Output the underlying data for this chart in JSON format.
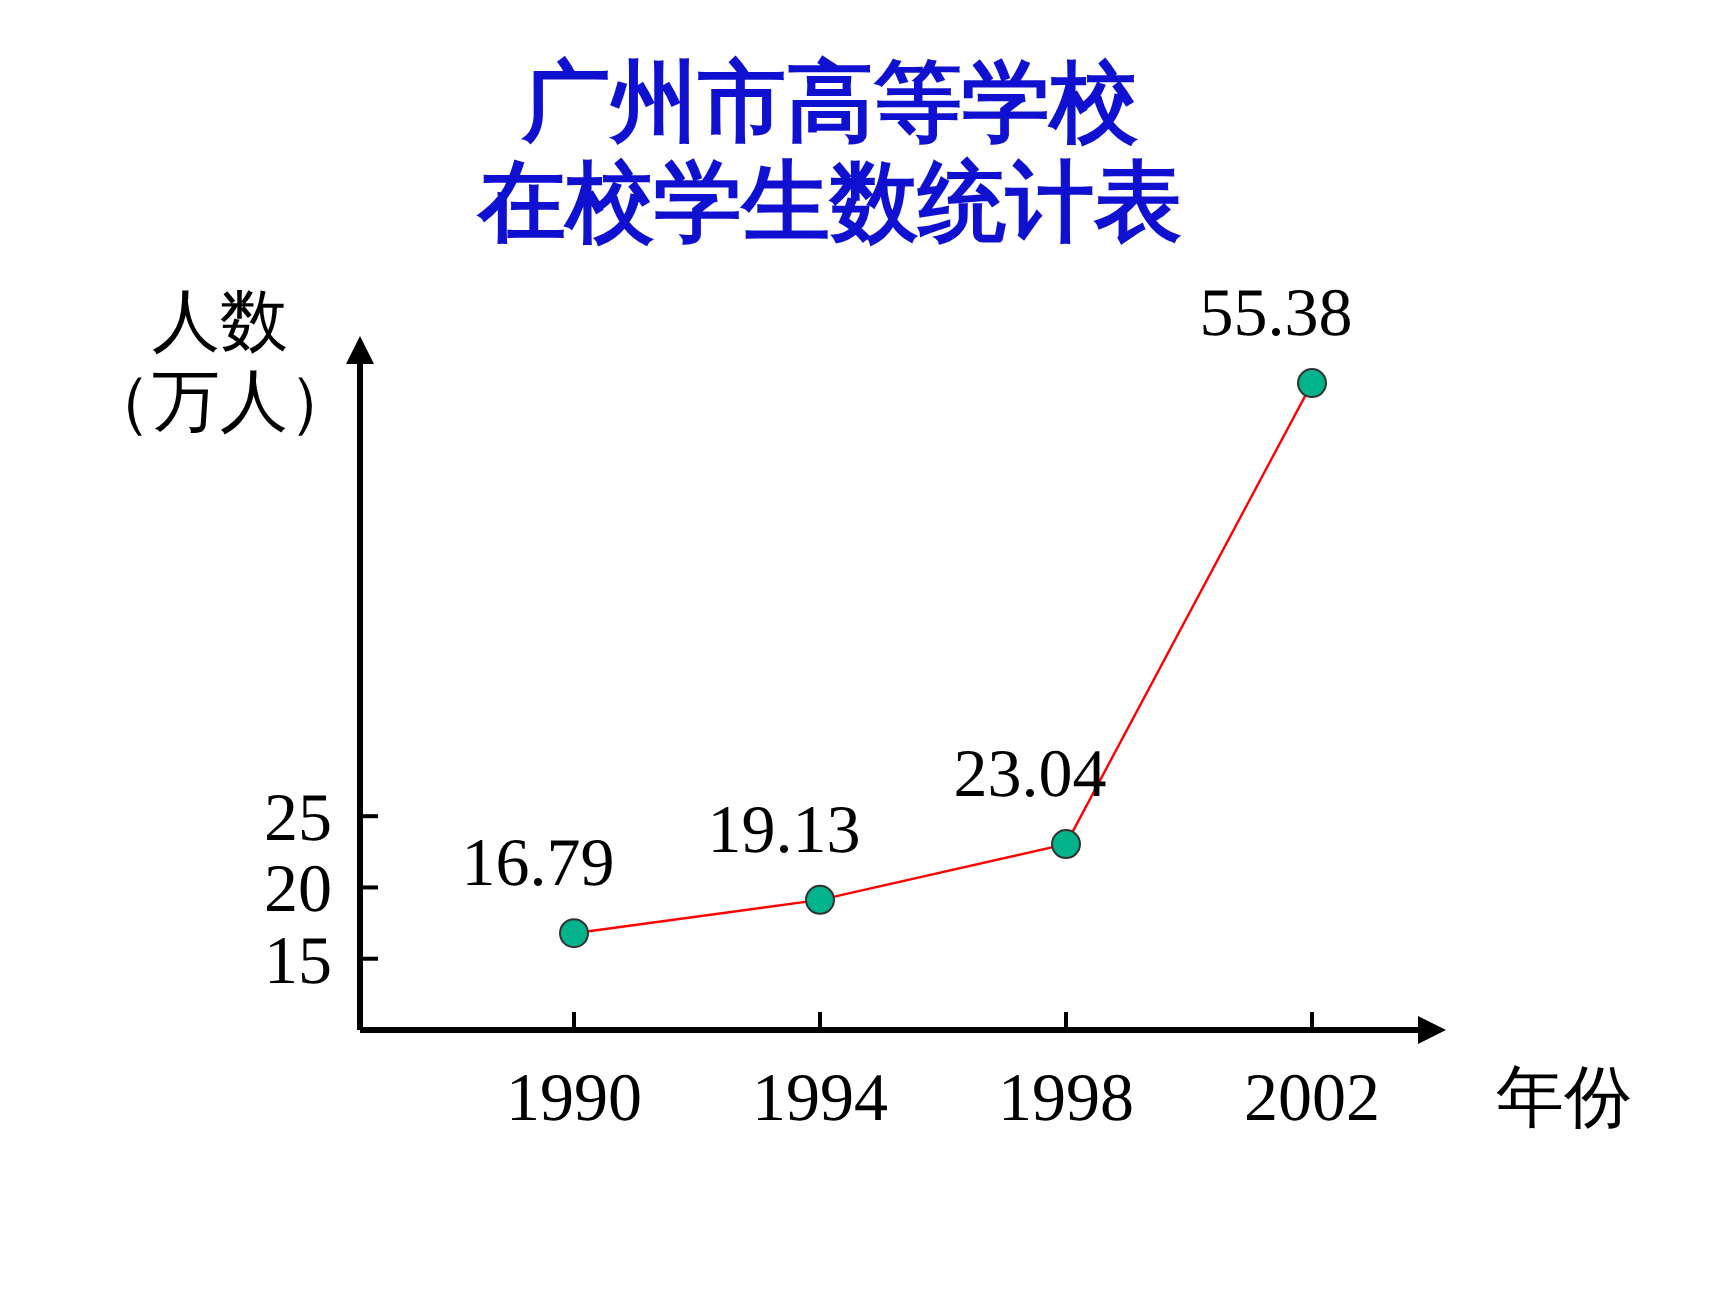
{
  "chart_data": {
    "type": "line",
    "title": "广州市高等学校在校学生数统计表",
    "ylabel": "人数（万人）",
    "xlabel": "年份",
    "categories": [
      "1990",
      "1994",
      "1998",
      "2002"
    ],
    "series": [
      {
        "color": "#ff0000",
        "colors": [
          "#00b38a",
          "#00b38a",
          "#00b38a",
          "#00b38a"
        ],
        "values": [
          16.79,
          19.13,
          23.04,
          55.38
        ]
      }
    ],
    "ylim": [
      10,
      57
    ],
    "yticks": [
      15,
      20,
      25
    ],
    "marker": "circle",
    "data_labels": true
  }
}
